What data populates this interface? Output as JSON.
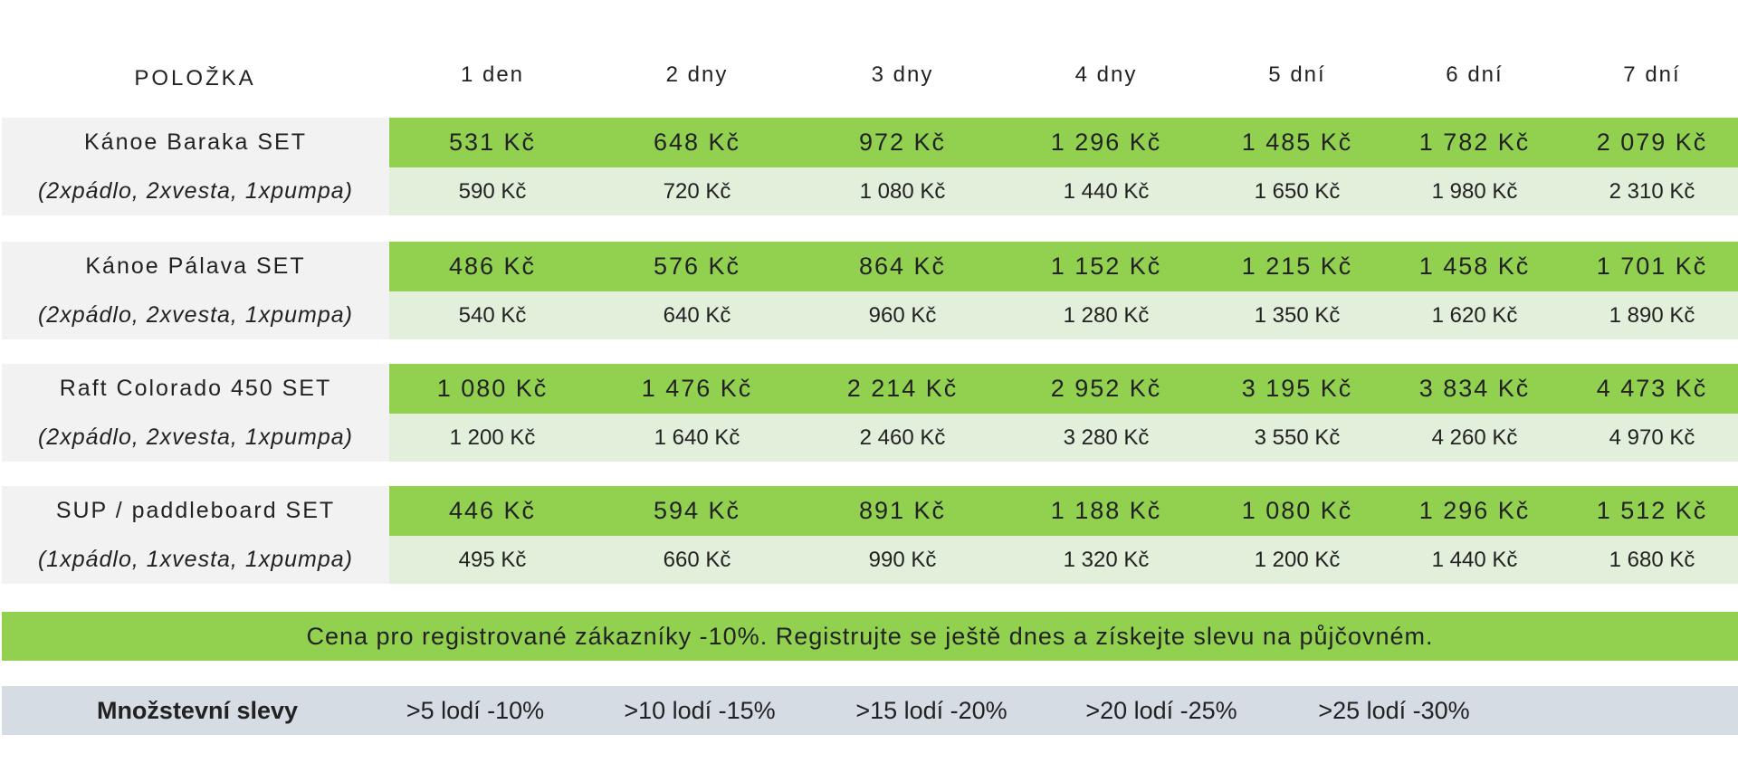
{
  "header": {
    "item_label": "POLOŽKA",
    "days": [
      "1 den",
      "2 dny",
      "3 dny",
      "4 dny",
      "5 dní",
      "6 dní",
      "7 dní"
    ]
  },
  "items": [
    {
      "name": "Kánoe Baraka SET",
      "contents": "(2xpádlo, 2xvesta, 1xpumpa)",
      "registered_prices": [
        "531 Kč",
        "648 Kč",
        "972 Kč",
        "1 296 Kč",
        "1 485 Kč",
        "1 782 Kč",
        "2 079 Kč"
      ],
      "regular_prices": [
        "590 Kč",
        "720 Kč",
        "1 080 Kč",
        "1 440 Kč",
        "1 650 Kč",
        "1 980 Kč",
        "2 310 Kč"
      ]
    },
    {
      "name": "Kánoe Pálava SET",
      "contents": "(2xpádlo, 2xvesta, 1xpumpa)",
      "registered_prices": [
        "486 Kč",
        "576 Kč",
        "864 Kč",
        "1 152 Kč",
        "1 215 Kč",
        "1 458 Kč",
        "1 701 Kč"
      ],
      "regular_prices": [
        "540 Kč",
        "640 Kč",
        "960 Kč",
        "1 280 Kč",
        "1 350 Kč",
        "1 620 Kč",
        "1 890 Kč"
      ]
    },
    {
      "name": "Raft Colorado 450 SET",
      "contents": "(2xpádlo, 2xvesta, 1xpumpa)",
      "registered_prices": [
        "1 080 Kč",
        "1 476 Kč",
        "2 214 Kč",
        "2 952 Kč",
        "3 195 Kč",
        "3 834 Kč",
        "4 473 Kč"
      ],
      "regular_prices": [
        "1 200 Kč",
        "1 640 Kč",
        "2 460 Kč",
        "3 280 Kč",
        "3 550 Kč",
        "4 260 Kč",
        "4 970 Kč"
      ]
    },
    {
      "name": "SUP / paddleboard SET",
      "contents": "(1xpádlo, 1xvesta, 1xpumpa)",
      "registered_prices": [
        "446 Kč",
        "594 Kč",
        "891 Kč",
        "1 188 Kč",
        "1 080 Kč",
        "1 296 Kč",
        "1 512 Kč"
      ],
      "regular_prices": [
        "495 Kč",
        "660 Kč",
        "990 Kč",
        "1 320 Kč",
        "1 200 Kč",
        "1 440 Kč",
        "1 680 Kč"
      ]
    }
  ],
  "banner": "Cena pro registrované zákazníky -10%. Registrujte se ještě dnes a získejte slevu na půjčovném.",
  "volume_discounts": {
    "label": "Množstevní slevy",
    "tiers": [
      ">5 lodí -10%",
      ">10 lodí -15%",
      ">15 lodí -20%",
      ">20 lodí -25%",
      ">25 lodí -30%"
    ]
  }
}
